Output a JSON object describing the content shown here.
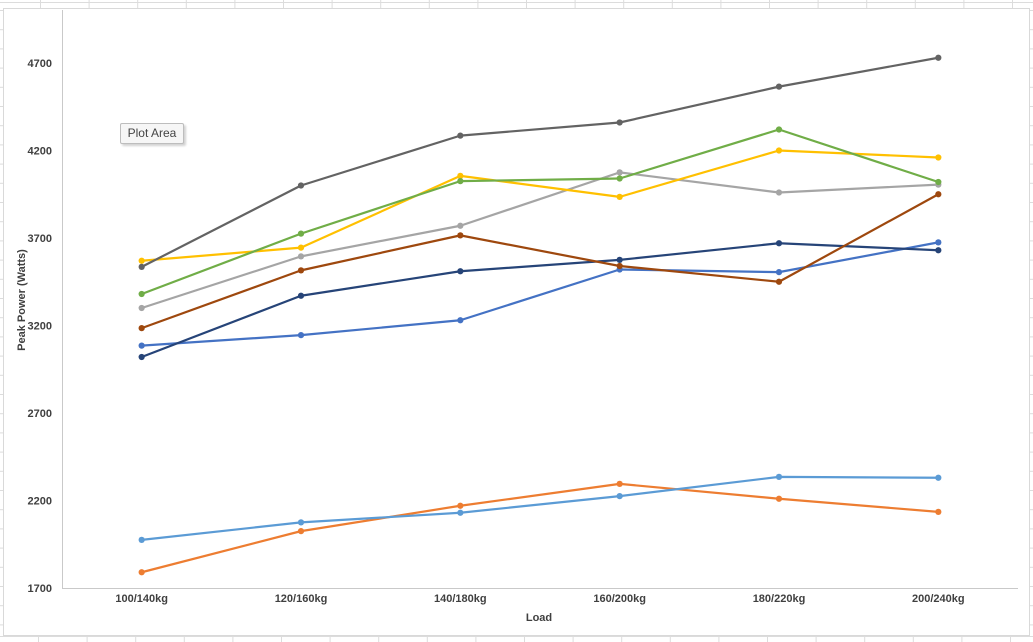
{
  "tooltip": {
    "text": "Plot Area"
  },
  "colors": {
    "axis_line": "#c9c9c9",
    "tick_text": "#404040",
    "chart_border": "#d9d9d9",
    "sheet_grid": "#dcdcdc",
    "tooltip_bg": "#f6f6f6",
    "tooltip_border": "#bdbdbd"
  },
  "chart_data": {
    "type": "line",
    "title": "",
    "xlabel": "Load",
    "ylabel": "Peak Power (Watts)",
    "categories": [
      "100/140kg",
      "120/160kg",
      "140/180kg",
      "160/200kg",
      "180/220kg",
      "200/240kg"
    ],
    "yticks": [
      1700,
      2200,
      2700,
      3200,
      3700,
      4200,
      4700
    ],
    "ylim": [
      1700,
      5000
    ],
    "grid": false,
    "legend": "none",
    "marker": "circle",
    "series": [
      {
        "color": "#4472C4",
        "values": [
          3085,
          3145,
          3230,
          3520,
          3505,
          3675
        ]
      },
      {
        "color": "#ED7D31",
        "values": [
          1790,
          2025,
          2170,
          2295,
          2210,
          2135
        ]
      },
      {
        "color": "#A5A5A5",
        "values": [
          3300,
          3595,
          3770,
          4075,
          3960,
          4005
        ]
      },
      {
        "color": "#FFC000",
        "values": [
          3570,
          3645,
          4055,
          3935,
          4200,
          4160
        ]
      },
      {
        "color": "#5B9BD5",
        "values": [
          1975,
          2075,
          2130,
          2225,
          2335,
          2330
        ]
      },
      {
        "color": "#70AD47",
        "values": [
          3380,
          3725,
          4025,
          4040,
          4320,
          4020
        ]
      },
      {
        "color": "#264478",
        "values": [
          3020,
          3370,
          3510,
          3575,
          3670,
          3630
        ]
      },
      {
        "color": "#9E480E",
        "values": [
          3185,
          3515,
          3715,
          3540,
          3450,
          3950
        ]
      },
      {
        "color": "#636363",
        "values": [
          3535,
          4000,
          4285,
          4360,
          4565,
          4730
        ]
      }
    ]
  }
}
